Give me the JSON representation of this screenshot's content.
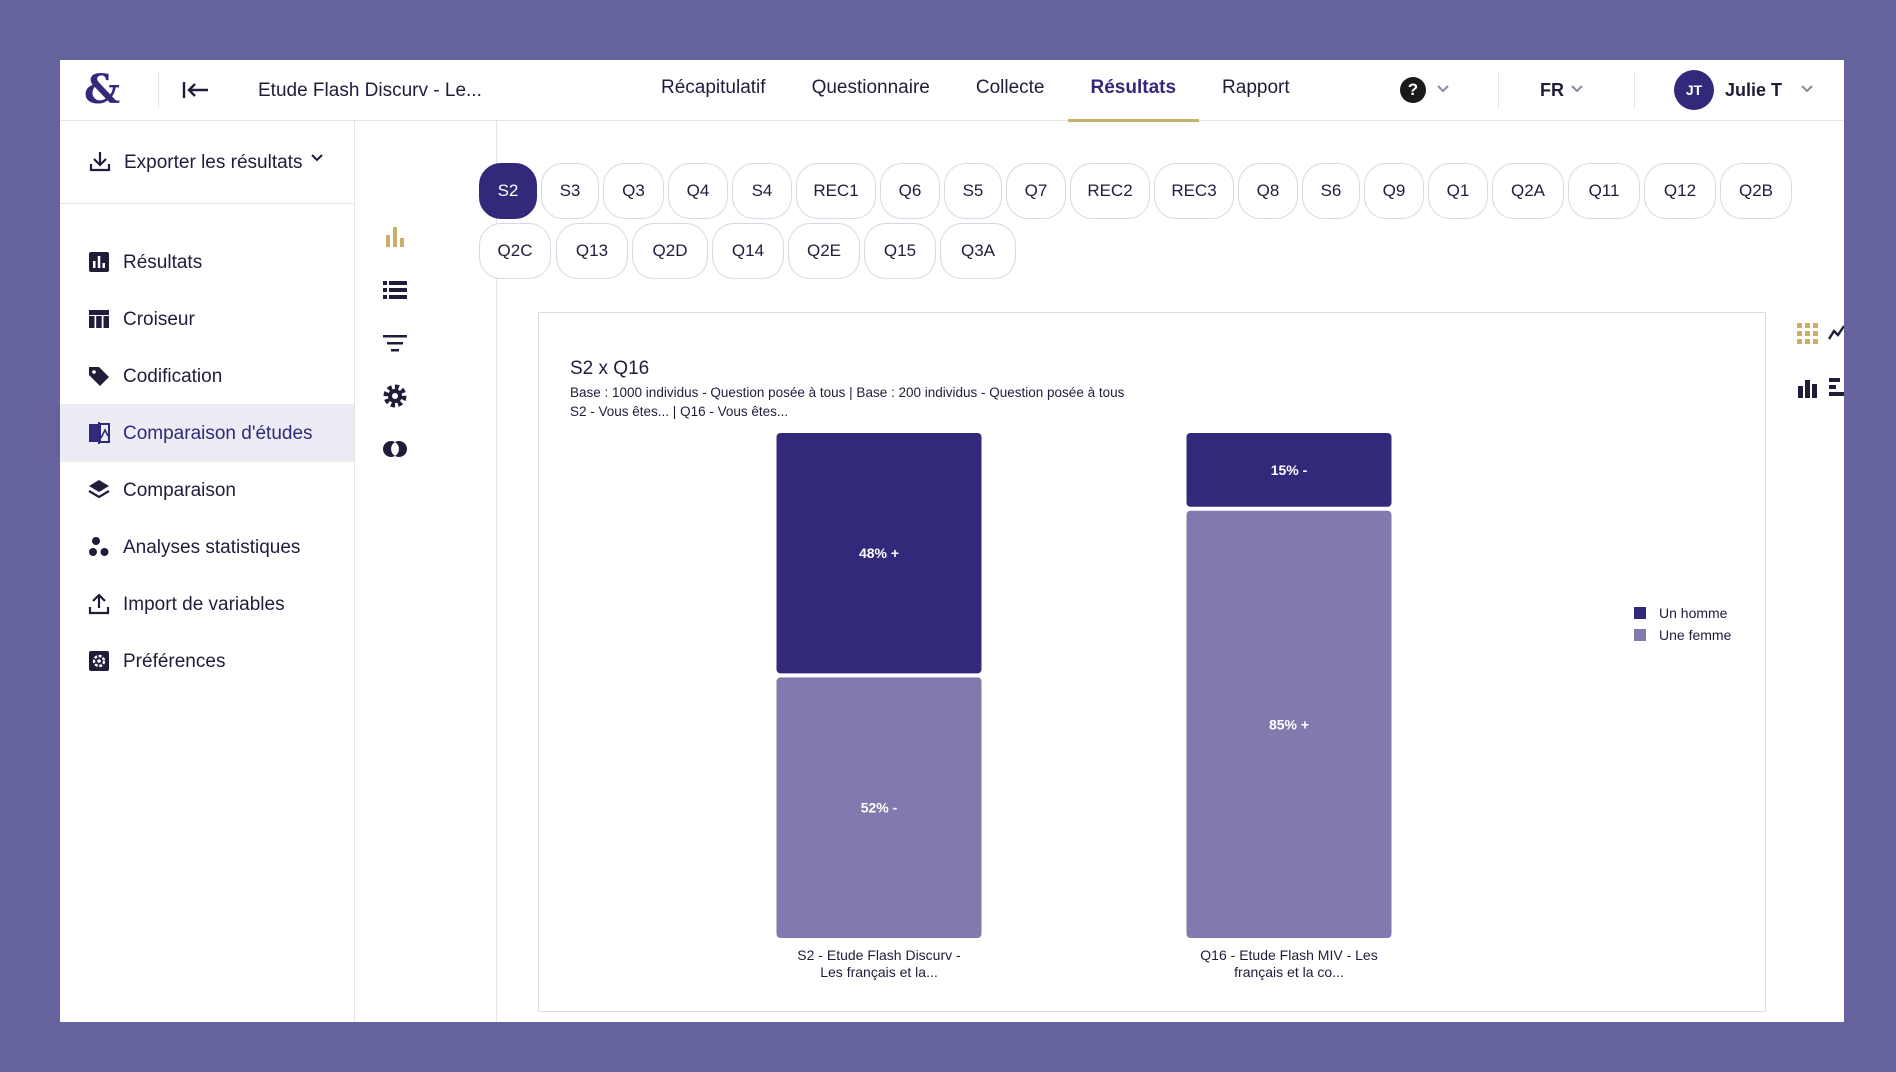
{
  "topbar": {
    "logo": "&",
    "study_title": "Etude Flash Discurv - Le...",
    "tabs": [
      {
        "label": "Récapitulatif",
        "active": false
      },
      {
        "label": "Questionnaire",
        "active": false
      },
      {
        "label": "Collecte",
        "active": false
      },
      {
        "label": "Résultats",
        "active": true
      },
      {
        "label": "Rapport",
        "active": false
      }
    ],
    "help_label": "?",
    "language": "FR",
    "user_initials": "JT",
    "user_name": "Julie T"
  },
  "sidebar": {
    "export_label": "Exporter les résultats",
    "items": [
      {
        "label": "Résultats",
        "icon": "bar-chart-icon",
        "active": false
      },
      {
        "label": "Croiseur",
        "icon": "table-icon",
        "active": false
      },
      {
        "label": "Codification",
        "icon": "tag-icon",
        "active": false
      },
      {
        "label": "Comparaison d'études",
        "icon": "compare-icon",
        "active": true
      },
      {
        "label": "Comparaison",
        "icon": "layers-icon",
        "active": false
      },
      {
        "label": "Analyses statistiques",
        "icon": "bubbles-icon",
        "active": false
      },
      {
        "label": "Import de variables",
        "icon": "upload-icon",
        "active": false
      },
      {
        "label": "Préférences",
        "icon": "settings-box-icon",
        "active": false
      }
    ]
  },
  "questions": {
    "row1": [
      "S2",
      "S3",
      "Q3",
      "Q4",
      "S4",
      "REC1",
      "Q6",
      "S5",
      "Q7",
      "REC2",
      "REC3",
      "Q8",
      "S6",
      "Q9",
      "Q1",
      "Q2A",
      "Q11",
      "Q12",
      "Q2B"
    ],
    "row2": [
      "Q2C",
      "Q13",
      "Q2D",
      "Q14",
      "Q2E",
      "Q15",
      "Q3A"
    ],
    "selected": "S2"
  },
  "colors": {
    "brand": "#33297a",
    "series_homme": "#33297a",
    "series_femme": "#817aae",
    "accent": "#c9b06a"
  },
  "chart_data": {
    "type": "bar",
    "stacked": true,
    "percent": true,
    "title": "S2 x Q16",
    "subtitle_1": "Base : 1000 individus - Question posée à tous | Base : 200 individus - Question posée à tous",
    "subtitle_2": "S2 - Vous êtes... | Q16 - Vous êtes...",
    "categories": [
      [
        "S2 - Etude Flash Discurv -",
        "Les français et la..."
      ],
      [
        "Q16 - Etude Flash MIV - Les",
        "français et la co..."
      ]
    ],
    "series": [
      {
        "name": "Un homme",
        "values": [
          48,
          15
        ],
        "labels": [
          "48% +",
          "15% -"
        ],
        "color": "#33297a"
      },
      {
        "name": "Une femme",
        "values": [
          52,
          85
        ],
        "labels": [
          "52% -",
          "85% +"
        ],
        "color": "#817aae"
      }
    ],
    "ylim": [
      0,
      100
    ],
    "legend": "right"
  }
}
